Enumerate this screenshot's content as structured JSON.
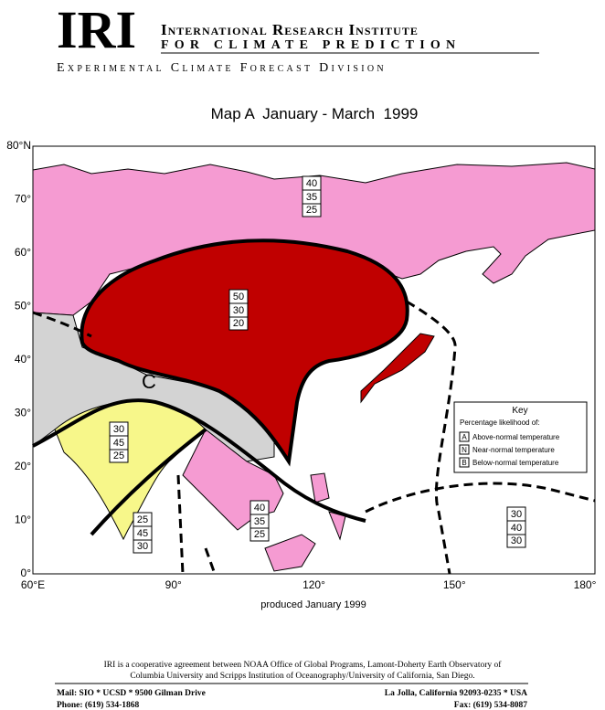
{
  "header": {
    "logo": "IRI",
    "line1": "International Research Institute",
    "line2": "for climate prediction",
    "line3": "Experimental Climate Forecast Division"
  },
  "map": {
    "title": "Map A  January - March  1999",
    "lat_labels": [
      "80°N",
      "70°",
      "60°",
      "50°",
      "40°",
      "30°",
      "20°",
      "10°",
      "0°"
    ],
    "lon_labels": [
      "60°E",
      "90°",
      "120°",
      "150°",
      "180°"
    ],
    "region_label": "C",
    "forecast_boxes": [
      {
        "values": [
          40,
          35,
          25
        ]
      },
      {
        "values": [
          50,
          30,
          20
        ]
      },
      {
        "values": [
          30,
          45,
          25
        ]
      },
      {
        "values": [
          25,
          45,
          30
        ]
      },
      {
        "values": [
          40,
          35,
          25
        ]
      },
      {
        "values": [
          30,
          40,
          30
        ]
      }
    ],
    "key": {
      "title": "Key",
      "subtitle": "Percentage likelihood of:",
      "rows": [
        {
          "letter": "A",
          "label": "Above-normal temperature"
        },
        {
          "letter": "N",
          "label": "Near-normal temperature"
        },
        {
          "letter": "B",
          "label": "Below-normal temperature"
        }
      ]
    },
    "produced": "produced January 1999"
  },
  "footer": {
    "note_line1": "IRI is a cooperative agreement between NOAA Office of Global Programs, Lamont-Doherty Earth Observatory of",
    "note_line2": "Columbia University and Scripps Institution of Oceanography/University of California, San Diego.",
    "mail": "Mail: SIO * UCSD * 9500 Gilman Drive",
    "location": "La Jolla, California 92093-0235 * USA",
    "phone": "Phone: (619) 534-1868",
    "fax": "Fax: (619) 534-8087"
  }
}
